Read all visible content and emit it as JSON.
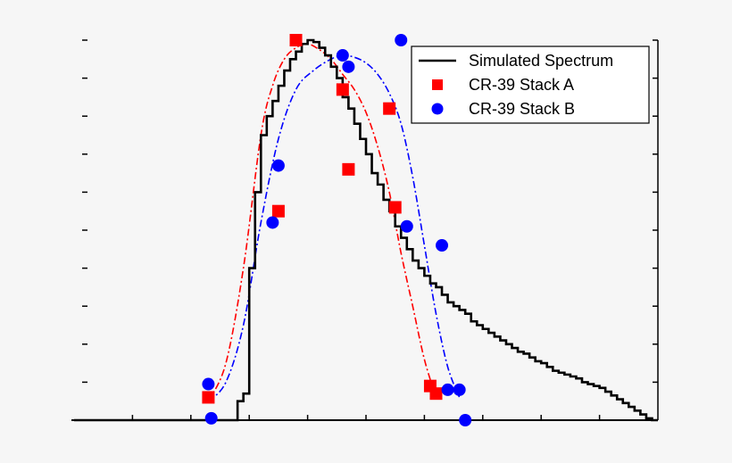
{
  "chart_data": {
    "type": "scatter",
    "title": "",
    "xlabel": "",
    "ylabel": "",
    "xlim": [
      0,
      100
    ],
    "ylim": [
      0,
      1.0
    ],
    "tick_labels_shown": false,
    "grid": false,
    "legend_position": "top-right",
    "series": [
      {
        "name": "Simulated Spectrum",
        "kind": "step",
        "color": "#000000",
        "x": [
          0,
          28,
          29,
          30,
          31,
          32,
          33,
          34,
          35,
          36,
          37,
          38,
          39,
          40,
          41,
          42,
          43,
          44,
          45,
          46,
          47,
          48,
          49,
          50,
          51,
          52,
          53,
          54,
          55,
          56,
          57,
          58,
          59,
          60,
          61,
          62,
          63,
          64,
          65,
          66,
          67,
          68,
          69,
          70,
          71,
          72,
          73,
          74,
          75,
          76,
          77,
          78,
          79,
          80,
          81,
          82,
          83,
          84,
          85,
          86,
          87,
          88,
          89,
          90,
          91,
          92,
          93,
          94,
          95,
          96,
          97,
          98,
          99
        ],
        "y": [
          0,
          0.05,
          0.07,
          0.4,
          0.6,
          0.75,
          0.8,
          0.84,
          0.88,
          0.92,
          0.95,
          0.97,
          0.99,
          1.0,
          0.995,
          0.98,
          0.96,
          0.93,
          0.9,
          0.85,
          0.82,
          0.78,
          0.74,
          0.7,
          0.65,
          0.62,
          0.58,
          0.55,
          0.51,
          0.48,
          0.45,
          0.42,
          0.4,
          0.38,
          0.36,
          0.35,
          0.33,
          0.31,
          0.3,
          0.29,
          0.28,
          0.26,
          0.25,
          0.24,
          0.23,
          0.22,
          0.21,
          0.2,
          0.19,
          0.18,
          0.175,
          0.165,
          0.155,
          0.15,
          0.14,
          0.13,
          0.125,
          0.12,
          0.115,
          0.11,
          0.1,
          0.095,
          0.09,
          0.085,
          0.075,
          0.065,
          0.055,
          0.045,
          0.035,
          0.025,
          0.015,
          0.005,
          0
        ]
      },
      {
        "name": "CR-39 Stack A",
        "kind": "points",
        "marker": "square",
        "color": "#ff0000",
        "x": [
          23,
          38,
          35,
          46,
          47,
          55,
          54,
          61,
          62
        ],
        "y": [
          0.06,
          1.0,
          0.55,
          0.87,
          0.66,
          0.56,
          0.82,
          0.09,
          0.07
        ]
      },
      {
        "name": "CR-39 Stack B",
        "kind": "points",
        "marker": "circle",
        "color": "#0000ff",
        "x": [
          23,
          23.5,
          34,
          35,
          46,
          47,
          56,
          57,
          63,
          64,
          66,
          67
        ],
        "y": [
          0.095,
          0.005,
          0.52,
          0.67,
          0.96,
          0.93,
          1.0,
          0.51,
          0.46,
          0.08,
          0.08,
          0.0
        ]
      },
      {
        "name": "",
        "kind": "fit",
        "style": "dash-dot",
        "color": "#ff0000",
        "x": [
          23,
          26,
          29,
          32,
          34,
          36,
          38,
          40,
          42,
          44,
          46,
          48,
          50,
          52,
          54,
          56,
          58,
          60,
          62
        ],
        "y": [
          0.05,
          0.15,
          0.4,
          0.75,
          0.88,
          0.95,
          0.98,
          0.99,
          0.975,
          0.95,
          0.91,
          0.87,
          0.81,
          0.72,
          0.6,
          0.44,
          0.3,
          0.16,
          0.06
        ]
      },
      {
        "name": "",
        "kind": "fit",
        "style": "dash-dot",
        "color": "#0000ff",
        "x": [
          23,
          26,
          29,
          32,
          35,
          38,
          41,
          44,
          46,
          48,
          50,
          52,
          54,
          56,
          58,
          60,
          62,
          64,
          66
        ],
        "y": [
          0.05,
          0.1,
          0.25,
          0.52,
          0.74,
          0.87,
          0.92,
          0.95,
          0.96,
          0.955,
          0.94,
          0.91,
          0.86,
          0.78,
          0.64,
          0.46,
          0.28,
          0.14,
          0.06
        ]
      }
    ]
  }
}
